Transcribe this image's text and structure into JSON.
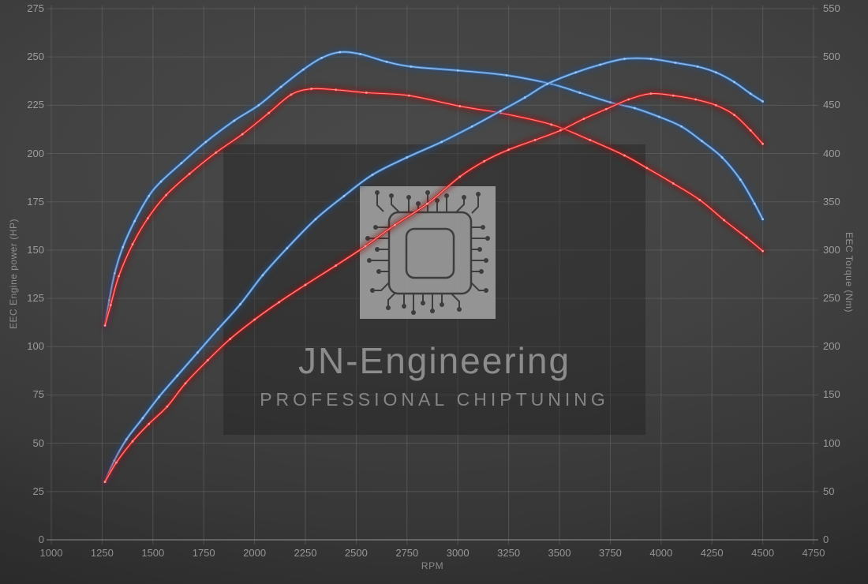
{
  "watermark": {
    "title": "JN-Engineering",
    "subtitle": "PROFESSIONAL CHIPTUNING"
  },
  "chart_data": {
    "type": "line",
    "legend": "none",
    "grid": true,
    "x_axis": {
      "label": "RPM",
      "min": 1000,
      "max": 4750,
      "tick_step": 250,
      "ticks": [
        1000,
        1250,
        1500,
        1750,
        2000,
        2250,
        2500,
        2750,
        3000,
        3250,
        3500,
        3750,
        4000,
        4250,
        4500,
        4750
      ]
    },
    "y_axis_left": {
      "label": "EEC Engine power (HP)",
      "min": 0,
      "max": 275,
      "tick_step": 25,
      "ticks": [
        0,
        25,
        50,
        75,
        100,
        125,
        150,
        175,
        200,
        225,
        250,
        275
      ]
    },
    "y_axis_right": {
      "label": "EEC Torque (Nm)",
      "min": 0,
      "max": 550,
      "tick_step": 50,
      "ticks": [
        0,
        50,
        100,
        150,
        200,
        250,
        300,
        350,
        400,
        450,
        500,
        550
      ]
    },
    "series": [
      {
        "name": "torque-blue",
        "axis": "right",
        "unit": "Nm",
        "color": "#4a86c8",
        "points": [
          [
            1264,
            222
          ],
          [
            1285,
            248
          ],
          [
            1312,
            276
          ],
          [
            1352,
            303
          ],
          [
            1410,
            330
          ],
          [
            1480,
            356
          ],
          [
            1540,
            371
          ],
          [
            1640,
            390
          ],
          [
            1760,
            412
          ],
          [
            1900,
            434
          ],
          [
            2020,
            450
          ],
          [
            2130,
            469
          ],
          [
            2240,
            487
          ],
          [
            2330,
            499
          ],
          [
            2420,
            505
          ],
          [
            2520,
            503
          ],
          [
            2650,
            495
          ],
          [
            2770,
            490
          ],
          [
            3000,
            486
          ],
          [
            3240,
            481
          ],
          [
            3460,
            472
          ],
          [
            3600,
            463
          ],
          [
            3750,
            453
          ],
          [
            3870,
            447
          ],
          [
            3990,
            438
          ],
          [
            4100,
            428
          ],
          [
            4200,
            413
          ],
          [
            4300,
            396
          ],
          [
            4390,
            373
          ],
          [
            4460,
            348
          ],
          [
            4500,
            332
          ]
        ]
      },
      {
        "name": "torque-red",
        "axis": "right",
        "unit": "Nm",
        "color": "#d02020",
        "points": [
          [
            1264,
            222
          ],
          [
            1292,
            243
          ],
          [
            1332,
            273
          ],
          [
            1400,
            306
          ],
          [
            1475,
            333
          ],
          [
            1565,
            357
          ],
          [
            1680,
            379
          ],
          [
            1810,
            401
          ],
          [
            1940,
            420
          ],
          [
            2070,
            442
          ],
          [
            2180,
            461
          ],
          [
            2280,
            467
          ],
          [
            2400,
            466
          ],
          [
            2550,
            463
          ],
          [
            2760,
            460
          ],
          [
            3010,
            449
          ],
          [
            3210,
            442
          ],
          [
            3460,
            430
          ],
          [
            3650,
            414
          ],
          [
            3820,
            398
          ],
          [
            3930,
            385
          ],
          [
            4060,
            369
          ],
          [
            4190,
            352
          ],
          [
            4310,
            331
          ],
          [
            4420,
            313
          ],
          [
            4500,
            299
          ]
        ]
      },
      {
        "name": "power-blue",
        "axis": "left",
        "unit": "HP",
        "color": "#4a86c8",
        "points": [
          [
            1264,
            30
          ],
          [
            1310,
            41
          ],
          [
            1370,
            52
          ],
          [
            1450,
            63
          ],
          [
            1530,
            74
          ],
          [
            1620,
            85
          ],
          [
            1720,
            97
          ],
          [
            1820,
            109
          ],
          [
            1930,
            122
          ],
          [
            2040,
            137
          ],
          [
            2160,
            151
          ],
          [
            2300,
            166
          ],
          [
            2440,
            178
          ],
          [
            2580,
            189
          ],
          [
            2750,
            198
          ],
          [
            2920,
            206
          ],
          [
            3070,
            214
          ],
          [
            3210,
            222
          ],
          [
            3330,
            229
          ],
          [
            3440,
            236
          ],
          [
            3580,
            242
          ],
          [
            3700,
            246
          ],
          [
            3820,
            249
          ],
          [
            3950,
            249
          ],
          [
            4070,
            247
          ],
          [
            4180,
            245
          ],
          [
            4270,
            242
          ],
          [
            4360,
            237
          ],
          [
            4440,
            231
          ],
          [
            4500,
            227
          ]
        ]
      },
      {
        "name": "power-red",
        "axis": "left",
        "unit": "HP",
        "color": "#d02020",
        "points": [
          [
            1264,
            30
          ],
          [
            1320,
            40
          ],
          [
            1400,
            51
          ],
          [
            1480,
            60
          ],
          [
            1570,
            69
          ],
          [
            1660,
            81
          ],
          [
            1770,
            93
          ],
          [
            1880,
            104
          ],
          [
            2000,
            114
          ],
          [
            2120,
            123
          ],
          [
            2250,
            132
          ],
          [
            2400,
            142
          ],
          [
            2545,
            152
          ],
          [
            2690,
            163
          ],
          [
            2850,
            174
          ],
          [
            3010,
            188
          ],
          [
            3130,
            196
          ],
          [
            3250,
            202
          ],
          [
            3380,
            207
          ],
          [
            3505,
            212
          ],
          [
            3620,
            218
          ],
          [
            3730,
            223
          ],
          [
            3840,
            228
          ],
          [
            3950,
            231
          ],
          [
            4060,
            230
          ],
          [
            4170,
            228
          ],
          [
            4270,
            225
          ],
          [
            4360,
            220
          ],
          [
            4440,
            212
          ],
          [
            4500,
            205
          ]
        ]
      }
    ]
  }
}
